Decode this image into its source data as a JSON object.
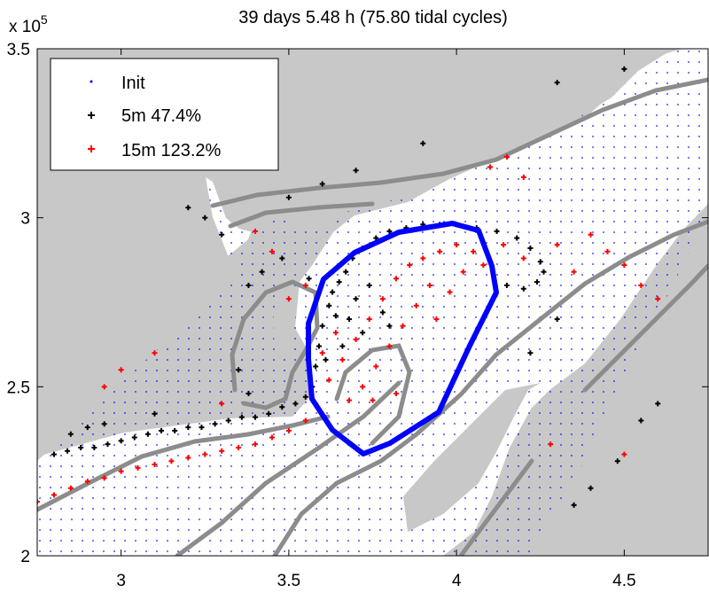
{
  "chart_data": {
    "type": "scatter",
    "title": "39 days 5.48 h (75.80 tidal cycles)",
    "xlabel": "",
    "ylabel": "",
    "xlim": [
      2.75,
      4.75
    ],
    "ylim": [
      2.0,
      3.5
    ],
    "y_exponent_label": "x 10",
    "y_exponent": "5",
    "xticks": [
      "3",
      "3.5",
      "4",
      "4.5"
    ],
    "yticks": [
      "2",
      "2.5",
      "3",
      "3.5"
    ],
    "grid": false,
    "legend_position": "top-left",
    "colors": {
      "land": "#c8c8c8",
      "water": "#ffffff",
      "init": "#0000ff",
      "depth_5m": "#000000",
      "depth_15m": "#ff0000",
      "contour": "#8c8c8c",
      "boundary": "#0000ff"
    },
    "series": [
      {
        "name": "Init",
        "color": "#0000ff",
        "marker": "dot"
      },
      {
        "name": "5m 47.4%",
        "color": "#000000",
        "marker": "plus",
        "points": [
          [
            2.8,
            2.3
          ],
          [
            2.84,
            2.31
          ],
          [
            2.88,
            2.32
          ],
          [
            2.92,
            2.32
          ],
          [
            2.96,
            2.33
          ],
          [
            3.0,
            2.34
          ],
          [
            3.04,
            2.35
          ],
          [
            3.08,
            2.36
          ],
          [
            3.12,
            2.37
          ],
          [
            3.16,
            2.37
          ],
          [
            3.2,
            2.38
          ],
          [
            3.24,
            2.38
          ],
          [
            3.28,
            2.39
          ],
          [
            3.32,
            2.4
          ],
          [
            3.36,
            2.41
          ],
          [
            3.4,
            2.41
          ],
          [
            3.44,
            2.42
          ],
          [
            3.48,
            2.44
          ],
          [
            3.52,
            2.45
          ],
          [
            3.55,
            2.47
          ],
          [
            3.57,
            2.5
          ],
          [
            3.58,
            2.56
          ],
          [
            3.59,
            2.62
          ],
          [
            3.6,
            2.68
          ],
          [
            3.62,
            2.74
          ],
          [
            3.63,
            2.78
          ],
          [
            3.65,
            2.81
          ],
          [
            3.67,
            2.84
          ],
          [
            3.68,
            2.7
          ],
          [
            3.7,
            2.76
          ],
          [
            3.72,
            2.66
          ],
          [
            3.66,
            2.62
          ],
          [
            3.64,
            2.71
          ],
          [
            3.61,
            2.58
          ],
          [
            3.69,
            2.88
          ],
          [
            3.72,
            2.91
          ],
          [
            3.76,
            2.94
          ],
          [
            3.8,
            2.96
          ],
          [
            3.85,
            2.97
          ],
          [
            3.9,
            2.98
          ],
          [
            3.95,
            2.98
          ],
          [
            4.0,
            2.98
          ],
          [
            4.06,
            2.97
          ],
          [
            4.12,
            2.96
          ],
          [
            4.18,
            2.94
          ],
          [
            4.22,
            2.91
          ],
          [
            4.25,
            2.87
          ],
          [
            4.26,
            2.84
          ],
          [
            4.24,
            2.81
          ],
          [
            4.2,
            2.79
          ],
          [
            4.15,
            2.8
          ],
          [
            3.78,
            2.72
          ],
          [
            3.74,
            2.8
          ],
          [
            3.8,
            2.68
          ],
          [
            3.56,
            2.82
          ],
          [
            3.48,
            2.88
          ],
          [
            3.42,
            2.84
          ],
          [
            3.38,
            2.8
          ],
          [
            3.3,
            2.95
          ],
          [
            3.25,
            3.0
          ],
          [
            3.2,
            3.03
          ],
          [
            3.5,
            3.06
          ],
          [
            3.6,
            3.1
          ],
          [
            3.7,
            3.14
          ],
          [
            3.9,
            3.22
          ],
          [
            4.3,
            3.4
          ],
          [
            4.5,
            3.44
          ],
          [
            2.85,
            2.36
          ],
          [
            2.9,
            2.38
          ],
          [
            2.95,
            2.39
          ],
          [
            3.1,
            2.42
          ],
          [
            3.35,
            2.55
          ],
          [
            3.38,
            2.48
          ],
          [
            4.55,
            2.4
          ],
          [
            4.6,
            2.45
          ],
          [
            4.48,
            2.28
          ],
          [
            4.4,
            2.2
          ],
          [
            4.35,
            2.15
          ],
          [
            4.22,
            2.6
          ],
          [
            4.3,
            2.7
          ]
        ]
      },
      {
        "name": "15m 123.2%",
        "color": "#ff0000",
        "marker": "plus",
        "points": [
          [
            2.75,
            2.16
          ],
          [
            2.8,
            2.18
          ],
          [
            2.85,
            2.2
          ],
          [
            2.9,
            2.22
          ],
          [
            2.95,
            2.23
          ],
          [
            3.0,
            2.25
          ],
          [
            3.05,
            2.26
          ],
          [
            3.1,
            2.27
          ],
          [
            3.15,
            2.28
          ],
          [
            3.2,
            2.29
          ],
          [
            3.25,
            2.3
          ],
          [
            3.3,
            2.31
          ],
          [
            3.35,
            2.32
          ],
          [
            3.4,
            2.33
          ],
          [
            3.45,
            2.35
          ],
          [
            3.5,
            2.37
          ],
          [
            3.55,
            2.4
          ],
          [
            3.58,
            2.45
          ],
          [
            3.62,
            2.52
          ],
          [
            3.66,
            2.58
          ],
          [
            3.7,
            2.64
          ],
          [
            3.74,
            2.7
          ],
          [
            3.78,
            2.76
          ],
          [
            3.82,
            2.82
          ],
          [
            3.86,
            2.86
          ],
          [
            3.9,
            2.88
          ],
          [
            3.95,
            2.9
          ],
          [
            4.0,
            2.92
          ],
          [
            4.05,
            2.9
          ],
          [
            4.08,
            2.86
          ],
          [
            3.92,
            2.8
          ],
          [
            3.88,
            2.74
          ],
          [
            3.84,
            2.68
          ],
          [
            3.8,
            2.62
          ],
          [
            3.76,
            2.56
          ],
          [
            3.72,
            2.5
          ],
          [
            3.98,
            2.78
          ],
          [
            4.02,
            2.84
          ],
          [
            3.94,
            2.7
          ],
          [
            4.14,
            2.92
          ],
          [
            4.2,
            2.88
          ],
          [
            3.68,
            2.46
          ],
          [
            3.75,
            2.46
          ],
          [
            3.82,
            2.48
          ],
          [
            3.6,
            2.6
          ],
          [
            3.64,
            2.66
          ],
          [
            4.3,
            2.92
          ],
          [
            4.4,
            2.95
          ],
          [
            4.5,
            2.86
          ],
          [
            4.55,
            2.8
          ],
          [
            4.6,
            2.76
          ],
          [
            4.35,
            2.84
          ],
          [
            4.45,
            2.9
          ],
          [
            4.1,
            3.15
          ],
          [
            4.15,
            3.18
          ],
          [
            4.2,
            3.12
          ],
          [
            3.55,
            2.8
          ],
          [
            3.5,
            2.76
          ],
          [
            3.45,
            2.9
          ],
          [
            3.4,
            2.96
          ],
          [
            2.95,
            2.5
          ],
          [
            3.0,
            2.55
          ],
          [
            3.1,
            2.6
          ],
          [
            3.3,
            2.45
          ],
          [
            4.5,
            2.3
          ],
          [
            4.28,
            2.33
          ]
        ]
      }
    ]
  }
}
